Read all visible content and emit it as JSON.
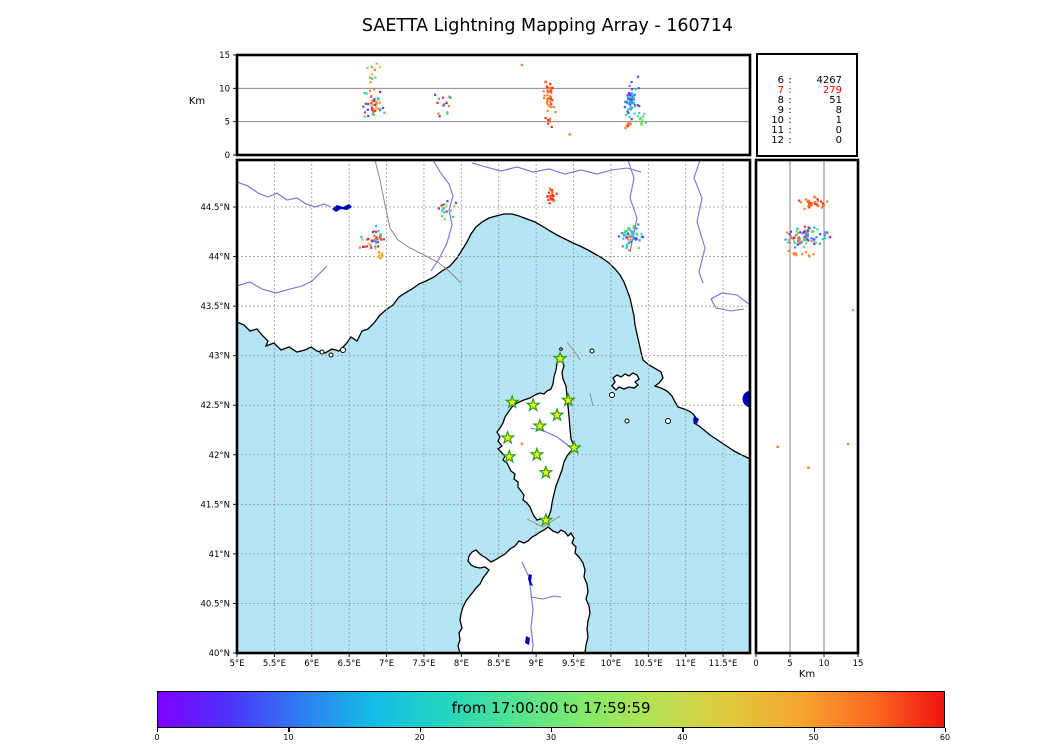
{
  "title": "SAETTA Lightning Mapping Array - 160714",
  "palette": [
    "#7d1ffa",
    "#4848f2",
    "#2f8cee",
    "#15c6e6",
    "#2ed8a8",
    "#5cdc66",
    "#93e45c",
    "#ffb32e",
    "#ff7a22",
    "#f5271c"
  ],
  "stats_panel": {
    "rows": [
      {
        "level": "6",
        "sep": ":",
        "value": "4267",
        "color": "#000000"
      },
      {
        "level": "7",
        "sep": ":",
        "value": "279",
        "color": "#ff0000"
      },
      {
        "level": "8",
        "sep": ":",
        "value": "51",
        "color": "#000000"
      },
      {
        "level": "9",
        "sep": ":",
        "value": "8",
        "color": "#000000"
      },
      {
        "level": "10",
        "sep": ":",
        "value": "1",
        "color": "#000000"
      },
      {
        "level": "11",
        "sep": ":",
        "value": "0",
        "color": "#000000"
      },
      {
        "level": "12",
        "sep": ":",
        "value": "0",
        "color": "#000000"
      }
    ]
  },
  "colorbar": {
    "label": "from 17:00:00 to 17:59:59",
    "range": [
      0,
      60
    ],
    "ticks": [
      {
        "value": 0,
        "label": "0"
      },
      {
        "value": 10,
        "label": "10"
      },
      {
        "value": 20,
        "label": "20"
      },
      {
        "value": 30,
        "label": "30"
      },
      {
        "value": 40,
        "label": "40"
      },
      {
        "value": 50,
        "label": "50"
      },
      {
        "value": 60,
        "label": "60"
      }
    ],
    "gradient": [
      "#7f00ff",
      "#4d33fa",
      "#2e7ef2",
      "#14bce6",
      "#23d6c0",
      "#52e392",
      "#86ea68",
      "#b8e052",
      "#e0c93e",
      "#f7a530",
      "#fb6a20",
      "#f01410"
    ]
  },
  "axes": {
    "alt_lon": {
      "ylabel": "Km",
      "yticks": [
        {
          "value": 0,
          "label": "0"
        },
        {
          "value": 5,
          "label": "5"
        },
        {
          "value": 10,
          "label": "10"
        },
        {
          "value": 15,
          "label": "15"
        }
      ],
      "gridlines": [
        5,
        10
      ]
    },
    "map": {
      "lon_ticks": [
        {
          "value": 5,
          "label": "5°E"
        },
        {
          "value": 5.5,
          "label": "5.5°E"
        },
        {
          "value": 6,
          "label": "6°E"
        },
        {
          "value": 6.5,
          "label": "6.5°E"
        },
        {
          "value": 7,
          "label": "7°E"
        },
        {
          "value": 7.5,
          "label": "7.5°E"
        },
        {
          "value": 8,
          "label": "8°E"
        },
        {
          "value": 8.5,
          "label": "8.5°E"
        },
        {
          "value": 9,
          "label": "9°E"
        },
        {
          "value": 9.5,
          "label": "9.5°E"
        },
        {
          "value": 10,
          "label": "10°E"
        },
        {
          "value": 10.5,
          "label": "10.5°E"
        },
        {
          "value": 11,
          "label": "11°E"
        },
        {
          "value": 11.5,
          "label": "11.5°E"
        }
      ],
      "lat_ticks": [
        {
          "value": 44.5,
          "label": "44.5°N"
        },
        {
          "value": 44,
          "label": "44°N"
        },
        {
          "value": 43.5,
          "label": "43.5°N"
        },
        {
          "value": 43,
          "label": "43°N"
        },
        {
          "value": 42.5,
          "label": "42.5°N"
        },
        {
          "value": 42,
          "label": "42°N"
        },
        {
          "value": 41.5,
          "label": "41.5°N"
        },
        {
          "value": 41,
          "label": "41°N"
        },
        {
          "value": 40.5,
          "label": "40.5°N"
        },
        {
          "value": 40,
          "label": "40°N"
        }
      ]
    },
    "alt_lat": {
      "xlabel": "Km",
      "xticks": [
        {
          "value": 0,
          "label": "0"
        },
        {
          "value": 5,
          "label": "5"
        },
        {
          "value": 10,
          "label": "10"
        },
        {
          "value": 15,
          "label": "15"
        }
      ],
      "gridlines": [
        5,
        10
      ]
    }
  },
  "map": {
    "sea_color": "#b5e5f4",
    "land_color": "#ffffff",
    "coast_color": "#000000",
    "river_color": "#7272dd",
    "border_color": "#8a8a8a",
    "lake_color": "#0000bb",
    "station_style": {
      "fill": "#ffee00",
      "edge": "#1fa01f"
    },
    "stations": [
      {
        "lon": 9.32,
        "lat": 42.97
      },
      {
        "lon": 8.68,
        "lat": 42.53
      },
      {
        "lon": 8.96,
        "lat": 42.5
      },
      {
        "lon": 9.43,
        "lat": 42.55
      },
      {
        "lon": 9.28,
        "lat": 42.4
      },
      {
        "lon": 9.05,
        "lat": 42.29
      },
      {
        "lon": 8.62,
        "lat": 42.17
      },
      {
        "lon": 9.51,
        "lat": 42.07
      },
      {
        "lon": 8.64,
        "lat": 41.98
      },
      {
        "lon": 9.01,
        "lat": 42.0
      },
      {
        "lon": 9.13,
        "lat": 41.82
      },
      {
        "lon": 9.13,
        "lat": 41.34
      }
    ]
  },
  "chart_data": [
    {
      "id": "alt-lon",
      "type": "scatter",
      "xlabel": "",
      "ylabel": "Km",
      "xlim": [
        5,
        11.86
      ],
      "ylim": [
        0,
        15
      ],
      "clusters": [
        {
          "cx": 6.83,
          "cy": 7.6,
          "sx": 0.12,
          "sy": 1.8,
          "n": 46,
          "colors": [
            9,
            8,
            3,
            5,
            0,
            1,
            7,
            4,
            9,
            8
          ],
          "seed": 101
        },
        {
          "cx": 6.81,
          "cy": 12.1,
          "sx": 0.1,
          "sy": 1.2,
          "n": 10,
          "colors": [
            9,
            7,
            3,
            5,
            8
          ],
          "seed": 102
        },
        {
          "cx": 7.78,
          "cy": 7.6,
          "sx": 0.1,
          "sy": 1.3,
          "n": 16,
          "colors": [
            5,
            6,
            8,
            0,
            9,
            3
          ],
          "seed": 103
        },
        {
          "cx": 9.17,
          "cy": 9.0,
          "sx": 0.05,
          "sy": 1.9,
          "n": 40,
          "colors": [
            8,
            9,
            8
          ],
          "seed": 104
        },
        {
          "cx": 9.17,
          "cy": 5.1,
          "sx": 0.06,
          "sy": 0.8,
          "n": 8,
          "colors": [
            8,
            9
          ],
          "seed": 105
        },
        {
          "cx": 10.27,
          "cy": 8.3,
          "sx": 0.07,
          "sy": 2.2,
          "n": 56,
          "colors": [
            2,
            1,
            3,
            0,
            4,
            2,
            3,
            1
          ],
          "seed": 106
        },
        {
          "cx": 10.4,
          "cy": 5.4,
          "sx": 0.05,
          "sy": 1.0,
          "n": 14,
          "colors": [
            5,
            6,
            4,
            5
          ],
          "seed": 107
        },
        {
          "cx": 10.24,
          "cy": 4.5,
          "sx": 0.08,
          "sy": 0.5,
          "n": 8,
          "colors": [
            8,
            9,
            7
          ],
          "seed": 108
        }
      ],
      "points": [
        {
          "x": 8.81,
          "y": 13.5,
          "c": 8
        },
        {
          "x": 9.45,
          "y": 3.1,
          "c": 8
        }
      ]
    },
    {
      "id": "lon-lat",
      "type": "scatter",
      "xlabel": "",
      "ylabel": "",
      "xlim": [
        5,
        11.86
      ],
      "ylim": [
        40,
        44.97
      ],
      "clusters": [
        {
          "cx": 6.82,
          "cy": 44.17,
          "sx": 0.12,
          "sy": 0.1,
          "n": 42,
          "colors": [
            9,
            8,
            3,
            5,
            0,
            1,
            7,
            9,
            8
          ],
          "seed": 201
        },
        {
          "cx": 6.93,
          "cy": 44.0,
          "sx": 0.05,
          "sy": 0.04,
          "n": 8,
          "colors": [
            8,
            7
          ],
          "seed": 202
        },
        {
          "cx": 7.77,
          "cy": 44.47,
          "sx": 0.1,
          "sy": 0.06,
          "n": 18,
          "colors": [
            5,
            6,
            8,
            0,
            9,
            3
          ],
          "seed": 203
        },
        {
          "cx": 9.2,
          "cy": 44.61,
          "sx": 0.05,
          "sy": 0.07,
          "n": 26,
          "colors": [
            8,
            9,
            8
          ],
          "seed": 204
        },
        {
          "cx": 10.26,
          "cy": 44.21,
          "sx": 0.11,
          "sy": 0.09,
          "n": 58,
          "colors": [
            2,
            1,
            3,
            4,
            5,
            8,
            0,
            2,
            3
          ],
          "seed": 205
        }
      ],
      "points": [
        {
          "x": 8.81,
          "y": 42.11,
          "c": 8
        }
      ]
    },
    {
      "id": "alt-lat",
      "type": "scatter",
      "xlabel": "Km",
      "ylabel": "",
      "xlim": [
        0,
        15
      ],
      "ylim": [
        40,
        44.97
      ],
      "clusters": [
        {
          "cx": 8.6,
          "cy": 44.54,
          "sx": 1.7,
          "sy": 0.05,
          "n": 38,
          "colors": [
            8,
            9,
            8
          ],
          "seed": 301
        },
        {
          "cx": 7.4,
          "cy": 44.2,
          "sx": 2.3,
          "sy": 0.08,
          "n": 85,
          "colors": [
            9,
            8,
            3,
            2,
            5,
            0,
            1,
            4,
            6,
            8
          ],
          "seed": 302
        },
        {
          "cx": 6.6,
          "cy": 44.01,
          "sx": 1.7,
          "sy": 0.04,
          "n": 10,
          "colors": [
            8
          ],
          "seed": 303
        }
      ],
      "points": [
        {
          "x": 14.26,
          "y": 43.46,
          "c": 5
        },
        {
          "x": 3.2,
          "y": 42.08,
          "c": 8
        },
        {
          "x": 13.54,
          "y": 42.11,
          "c": 8
        },
        {
          "x": 7.71,
          "y": 41.87,
          "c": 8
        }
      ]
    }
  ]
}
